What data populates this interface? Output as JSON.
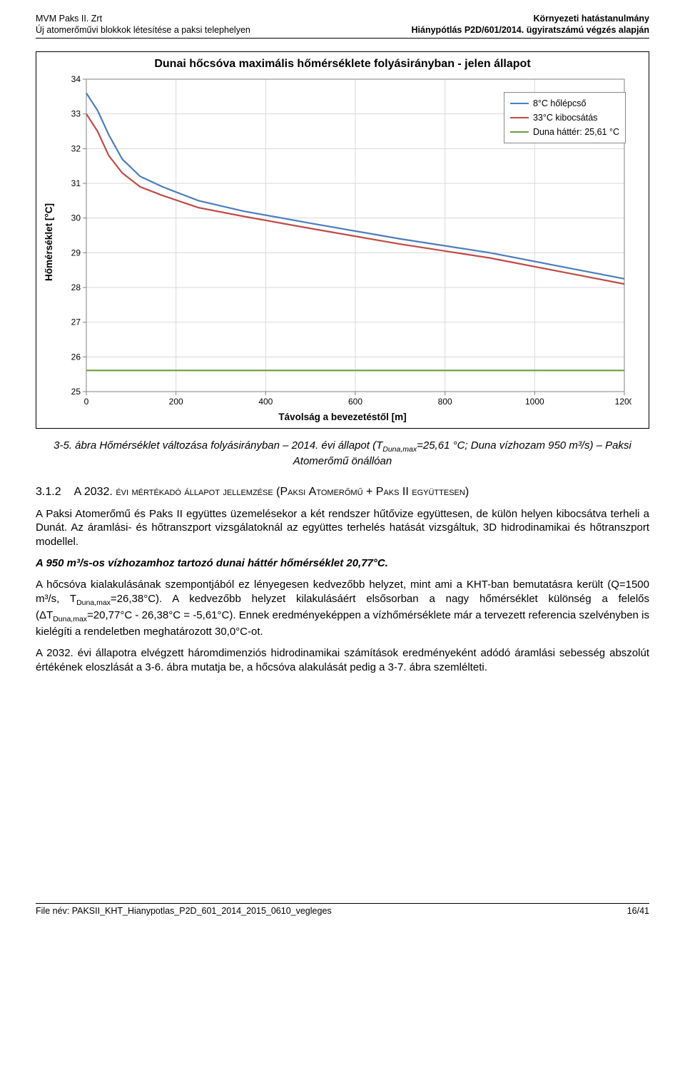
{
  "header": {
    "left_line1": "MVM Paks II. Zrt",
    "left_line2": "Új atomerőművi blokkok létesítése a paksi telephelyen",
    "right_line1": "Környezeti hatástanulmány",
    "right_line2": "Hiánypótlás P2D/601/2014. ügyiratszámú végzés alapján"
  },
  "chart": {
    "type": "line",
    "title": "Dunai hőcsóva maximális hőmérséklete folyásirányban - jelen állapot",
    "ylabel": "Hőmérséklet [°C]",
    "xlabel": "Távolság a bevezetéstől [m]",
    "xlim": [
      0,
      1200
    ],
    "ylim": [
      25,
      34
    ],
    "xtick_step": 200,
    "ytick_step": 1,
    "xticks": [
      0,
      200,
      400,
      600,
      800,
      1000,
      1200
    ],
    "yticks": [
      25,
      26,
      27,
      28,
      29,
      30,
      31,
      32,
      33,
      34
    ],
    "grid_color": "#d9d9d9",
    "background_color": "#ffffff",
    "axis_color": "#808080",
    "tick_fontsize": 12,
    "line_width": 2.2,
    "legend_position": "top-right",
    "series": [
      {
        "label": "8°C hőlépcső",
        "color": "#4a7ebb",
        "x": [
          0,
          25,
          50,
          80,
          120,
          170,
          250,
          350,
          500,
          700,
          900,
          1100,
          1200
        ],
        "y": [
          33.6,
          33.1,
          32.4,
          31.7,
          31.2,
          30.9,
          30.5,
          30.2,
          29.85,
          29.4,
          29.0,
          28.5,
          28.25
        ]
      },
      {
        "label": "33°C kibocsátás",
        "color": "#be4b48",
        "x": [
          0,
          25,
          50,
          80,
          120,
          170,
          250,
          350,
          500,
          700,
          900,
          1100,
          1200
        ],
        "y": [
          33.0,
          32.5,
          31.8,
          31.3,
          30.9,
          30.65,
          30.3,
          30.05,
          29.7,
          29.25,
          28.85,
          28.35,
          28.1
        ]
      },
      {
        "label": "Duna háttér: 25,61 °C",
        "color": "#6b9e3f",
        "x": [
          0,
          1200
        ],
        "y": [
          25.61,
          25.61
        ]
      }
    ]
  },
  "caption": {
    "line1_prefix": "3-5. ábra Hőmérséklet változása folyásirányban – 2014. évi állapot (T",
    "line1_sub": "Duna,max",
    "line1_suffix": "=25,61 °C; Duna vízhozam 950 m³/s) – Paksi",
    "line2": "Atomerőmű önállóan"
  },
  "section": {
    "number": "3.1.2",
    "title_prefix": "A 2032. ",
    "title_sc1": "évi mértékadó állapot jellemzése",
    "title_paren_open": " (P",
    "title_sc2": "aksi ",
    "title_cap1": "A",
    "title_sc3": "tomerőmű ",
    "title_plus": "+ P",
    "title_sc4": "aks ",
    "title_cap2": "II ",
    "title_sc5": "együttesen",
    "title_paren_close": ")"
  },
  "paragraphs": {
    "p1": "A Paksi Atomerőmű és Paks II együttes üzemelésekor a két rendszer hűtővize együttesen, de külön helyen kibocsátva terheli a Dunát. Az áramlási- és hőtranszport vizsgálatoknál az együttes terhelés hatását vizsgáltuk, 3D hidrodinamikai és hőtranszport modellel.",
    "p2": "A 950 m³/s-os vízhozamhoz tartozó dunai háttér hőmérséklet 20,77°C.",
    "p3_a": "A hőcsóva kialakulásának szempontjából ez lényegesen kedvezőbb helyzet, mint ami a KHT-ban bemutatásra került (Q=1500 m³/s, T",
    "p3_sub1": "Duna,max",
    "p3_b": "=26,38°C). A kedvezőbb helyzet kilakulásáért elsősorban a nagy hőmérséklet különség a felelős (ΔT",
    "p3_sub2": "Duna,max",
    "p3_c": "=20,77°C - 26,38°C = -5,61°C). Ennek eredményeképpen a vízhőmérséklete már a tervezett referencia szelvényben is kielégíti a rendeletben meghatározott 30,0°C-ot.",
    "p4": "A 2032. évi állapotra elvégzett háromdimenziós hidrodinamikai számítások eredményeként adódó áramlási sebesség abszolút értékének eloszlását a 3-6. ábra mutatja be, a hőcsóva alakulását pedig a 3-7. ábra szemlélteti."
  },
  "footer": {
    "file": "File név: PAKSII_KHT_Hianypotlas_P2D_601_2014_2015_0610_vegleges",
    "page": "16/41"
  }
}
